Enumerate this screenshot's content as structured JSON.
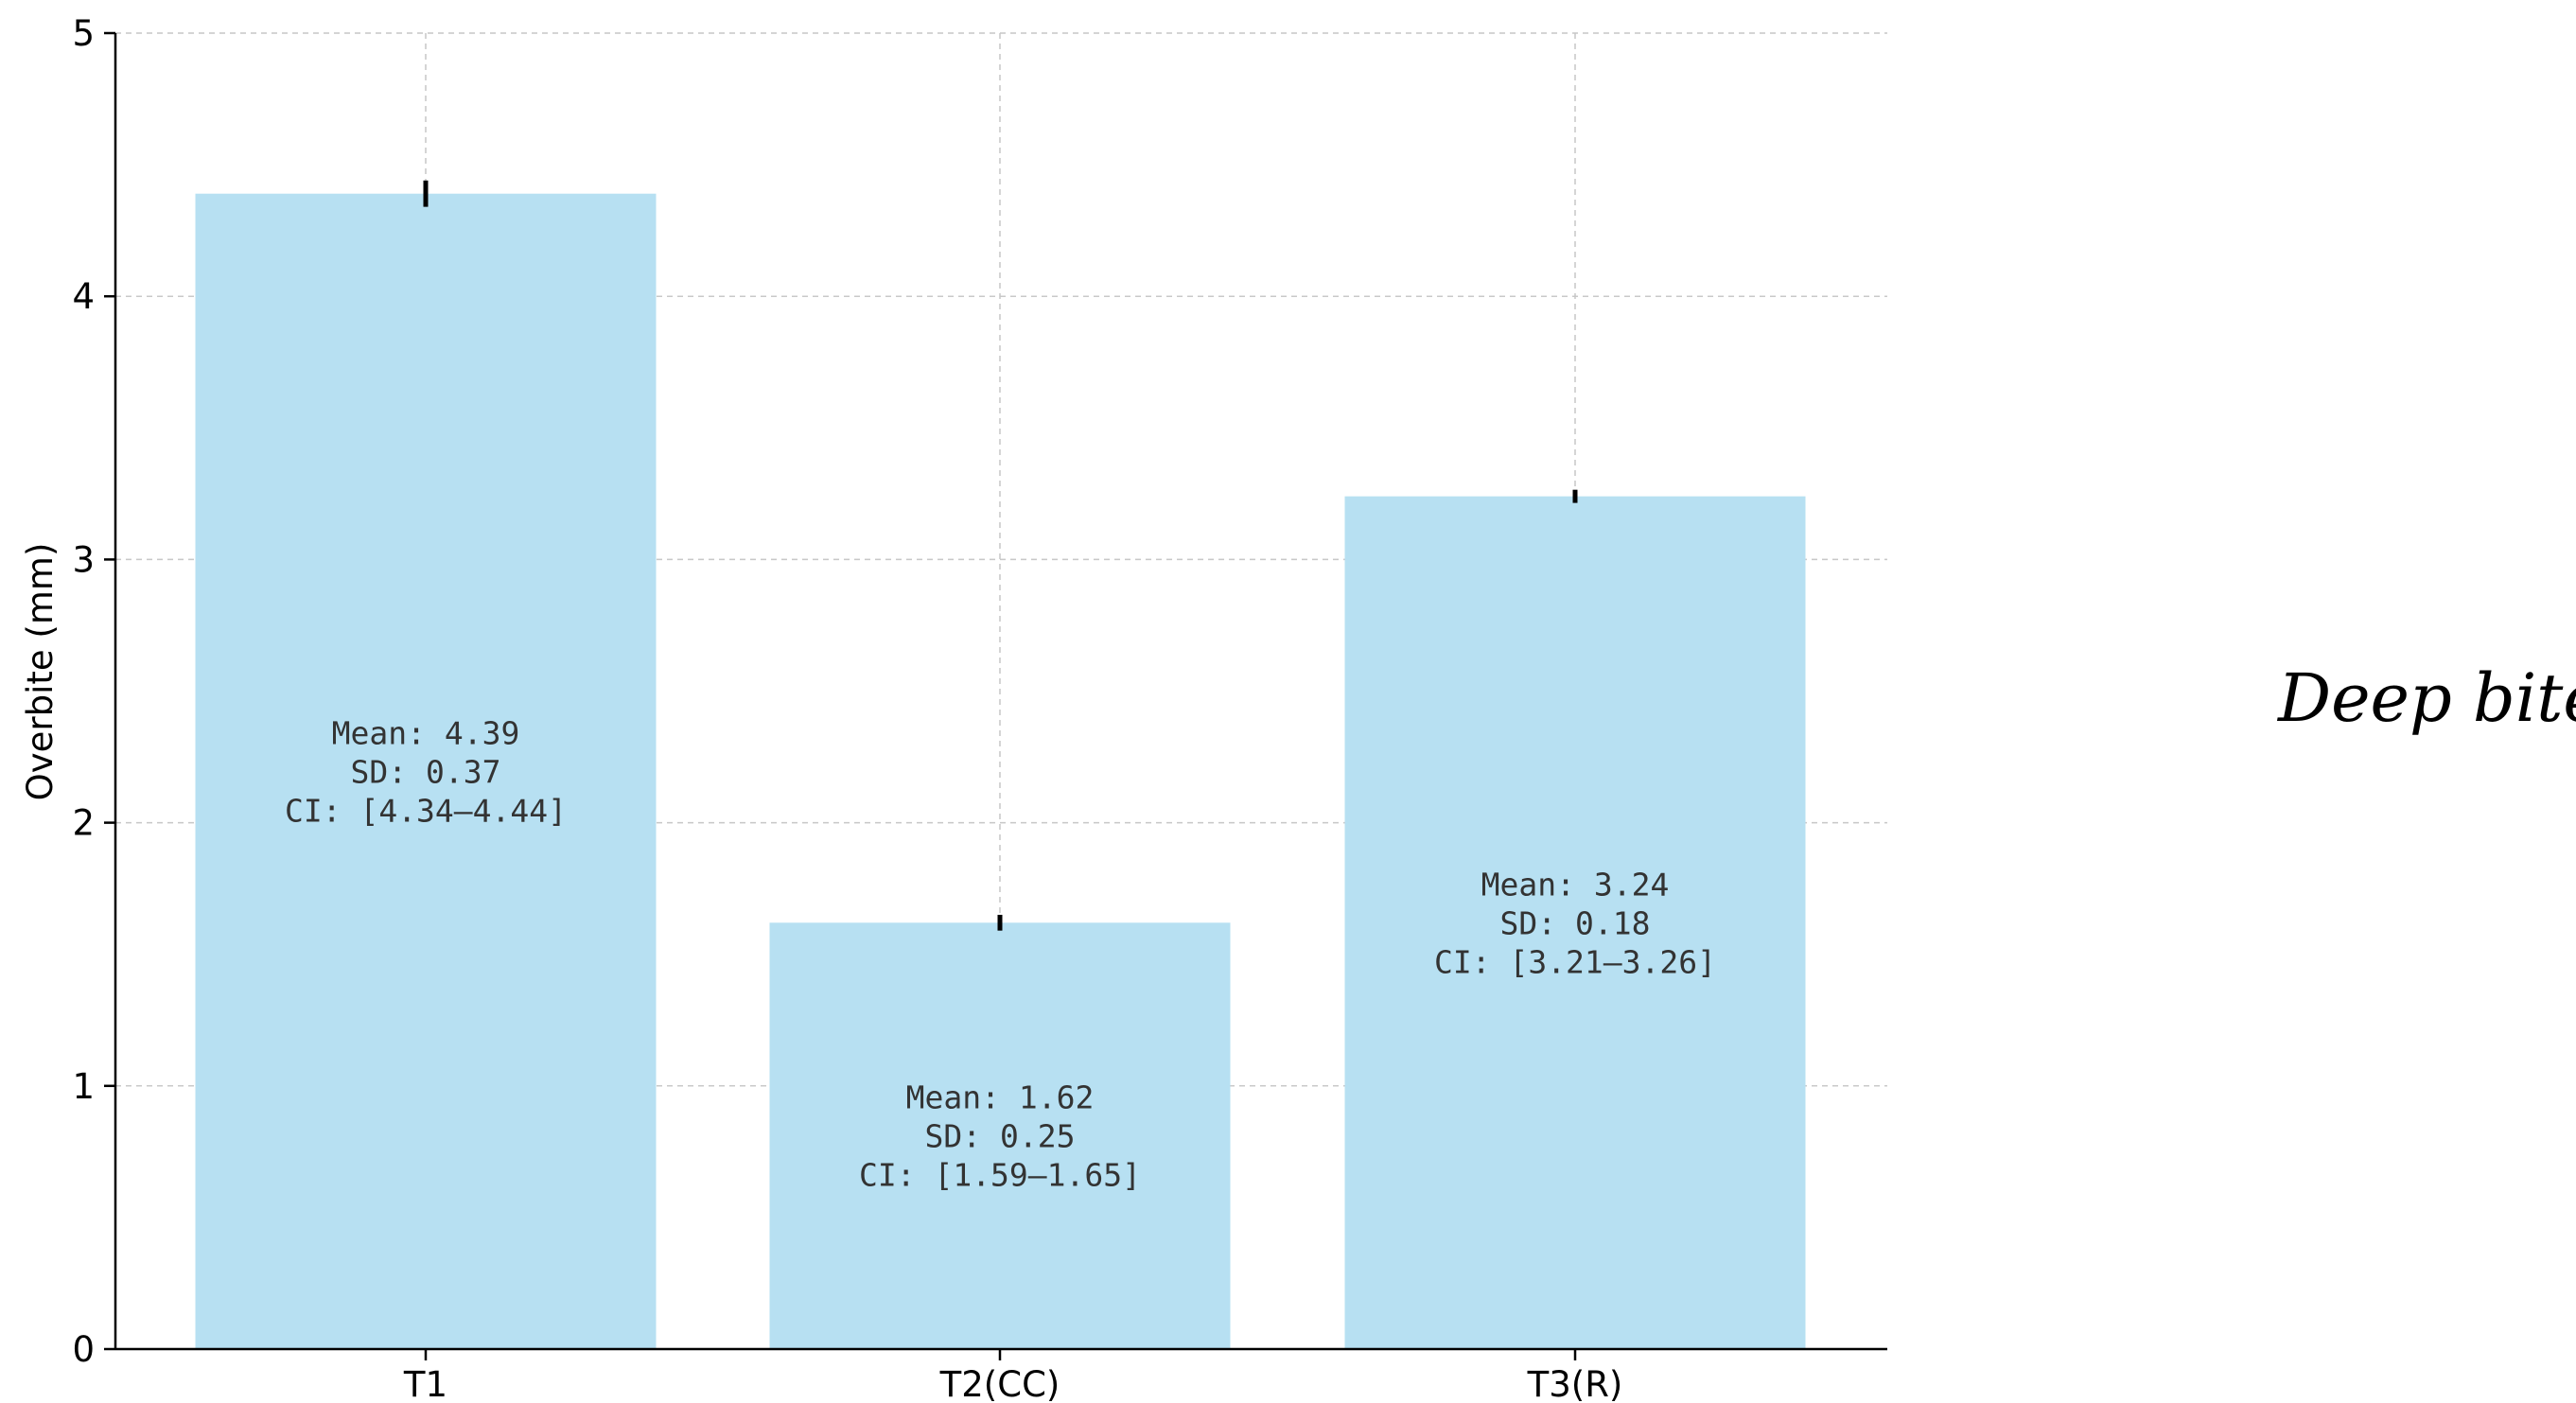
{
  "chart_data": {
    "type": "bar",
    "categories": [
      "T1",
      "T2(CC)",
      "T3(R)"
    ],
    "values": [
      4.39,
      1.62,
      3.24
    ],
    "errors": [
      0.05,
      0.03,
      0.025
    ],
    "annotations": [
      [
        "Mean: 4.39",
        "SD: 0.37",
        "CI: [4.34–4.44]"
      ],
      [
        "Mean: 1.62",
        "SD: 0.25",
        "CI: [1.59–1.65]"
      ],
      [
        "Mean: 3.24",
        "SD: 0.18",
        "CI: [3.21–3.26]"
      ]
    ],
    "ylabel": "Overbite (mm)",
    "xlabel": "",
    "title": "",
    "ylim": [
      0,
      5
    ],
    "yticks": [
      0,
      1,
      2,
      3,
      4,
      5
    ],
    "grid": true,
    "bar_color": "#b7e0f2",
    "side_label": "Deep bite"
  }
}
